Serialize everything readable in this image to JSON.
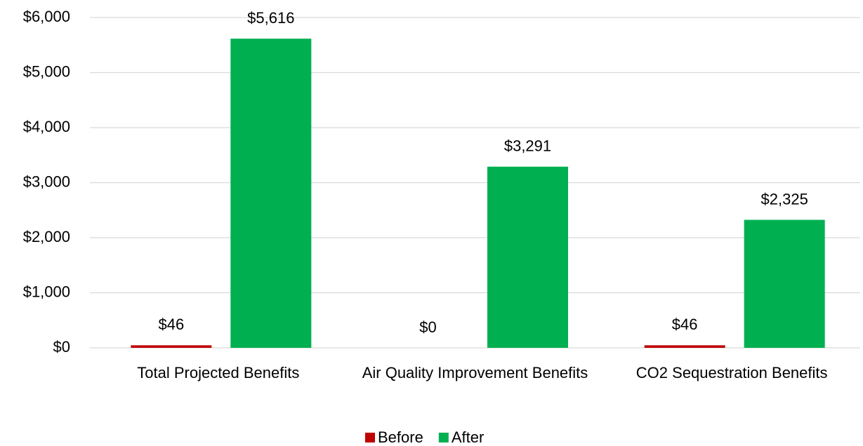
{
  "chart_data": {
    "type": "bar",
    "categories": [
      "Total Projected Benefits",
      "Air Quality Improvement Benefits",
      "CO2 Sequestration Benefits"
    ],
    "series": [
      {
        "name": "Before",
        "color": "#c00000",
        "values": [
          46,
          0,
          46
        ],
        "value_labels": [
          "$46",
          "$0",
          "$46"
        ]
      },
      {
        "name": "After",
        "color": "#00b050",
        "values": [
          5616,
          3291,
          2325
        ],
        "value_labels": [
          "$5,616",
          "$3,291",
          "$2,325"
        ]
      }
    ],
    "ylim": [
      0,
      6000
    ],
    "yticks": [
      {
        "value": 0,
        "label": "$0"
      },
      {
        "value": 1000,
        "label": "$1,000"
      },
      {
        "value": 2000,
        "label": "$2,000"
      },
      {
        "value": 3000,
        "label": "$3,000"
      },
      {
        "value": 4000,
        "label": "$4,000"
      },
      {
        "value": 5000,
        "label": "$5,000"
      },
      {
        "value": 6000,
        "label": "$6,000"
      }
    ],
    "grid": true,
    "legend": "bottom"
  }
}
